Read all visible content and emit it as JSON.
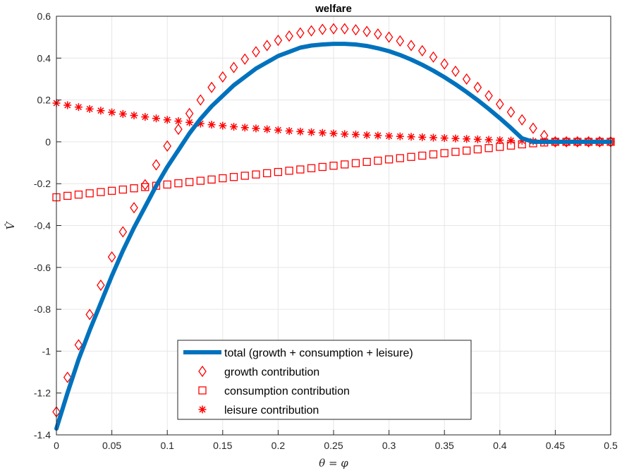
{
  "chart_data": {
    "type": "line",
    "title": "welfare",
    "xlabel": "θ = φ",
    "ylabel": "V̂",
    "xlim": [
      0,
      0.5
    ],
    "ylim": [
      -1.4,
      0.6
    ],
    "grid": true,
    "legend_position": "bottom-center",
    "x_ticks": [
      0,
      0.05,
      0.1,
      0.15,
      0.2,
      0.25,
      0.3,
      0.35,
      0.4,
      0.45,
      0.5
    ],
    "x_tick_labels": [
      "0",
      "0.05",
      "0.1",
      "0.15",
      "0.2",
      "0.25",
      "0.3",
      "0.35",
      "0.4",
      "0.45",
      "0.5"
    ],
    "y_ticks": [
      -1.4,
      -1.2,
      -1,
      -0.8,
      -0.6,
      -0.4,
      -0.2,
      0,
      0.2,
      0.4,
      0.6
    ],
    "y_tick_labels": [
      "-1.4",
      "-1.2",
      "-1",
      "-0.8",
      "-0.6",
      "-0.4",
      "-0.2",
      "0",
      "0.2",
      "0.4",
      "0.6"
    ],
    "x": [
      0,
      0.01,
      0.02,
      0.03,
      0.04,
      0.05,
      0.06,
      0.07,
      0.08,
      0.09,
      0.1,
      0.11,
      0.12,
      0.13,
      0.14,
      0.15,
      0.16,
      0.17,
      0.18,
      0.19,
      0.2,
      0.21,
      0.22,
      0.23,
      0.24,
      0.25,
      0.26,
      0.27,
      0.28,
      0.29,
      0.3,
      0.31,
      0.32,
      0.33,
      0.34,
      0.35,
      0.36,
      0.37,
      0.38,
      0.39,
      0.4,
      0.41,
      0.42,
      0.43,
      0.44,
      0.45,
      0.46,
      0.47,
      0.48,
      0.49,
      0.5
    ],
    "series": [
      {
        "name": "total (growth + consumption + leisure)",
        "style": "line",
        "color": "#0072BD",
        "x": [
          0,
          0.01,
          0.02,
          0.03,
          0.04,
          0.05,
          0.06,
          0.07,
          0.08,
          0.09,
          0.1,
          0.11,
          0.12,
          0.13,
          0.14,
          0.15,
          0.16,
          0.17,
          0.18,
          0.19,
          0.2,
          0.21,
          0.22,
          0.23,
          0.24,
          0.25,
          0.26,
          0.27,
          0.28,
          0.29,
          0.3,
          0.31,
          0.32,
          0.33,
          0.34,
          0.35,
          0.36,
          0.37,
          0.38,
          0.39,
          0.4,
          0.41,
          0.42,
          0.43,
          0.44,
          0.45,
          0.46,
          0.47,
          0.48,
          0.49,
          0.5
        ],
        "values": [
          -1.37,
          -1.2,
          -1.04,
          -0.9,
          -0.77,
          -0.64,
          -0.52,
          -0.41,
          -0.31,
          -0.21,
          -0.12,
          -0.04,
          0.04,
          0.11,
          0.17,
          0.22,
          0.27,
          0.31,
          0.35,
          0.38,
          0.41,
          0.43,
          0.45,
          0.46,
          0.465,
          0.468,
          0.468,
          0.465,
          0.458,
          0.447,
          0.433,
          0.415,
          0.393,
          0.368,
          0.34,
          0.309,
          0.275,
          0.238,
          0.199,
          0.157,
          0.113,
          0.066,
          0.017,
          0.0,
          0.0,
          0.0,
          0.0,
          0.0,
          0.0,
          0.0,
          0.0
        ]
      },
      {
        "name": "growth contribution",
        "style": "marker",
        "marker": "diamond",
        "color": "#FF0000",
        "values": [
          -1.29,
          -1.125,
          -0.97,
          -0.825,
          -0.685,
          -0.55,
          -0.43,
          -0.315,
          -0.205,
          -0.11,
          -0.02,
          0.06,
          0.135,
          0.2,
          0.26,
          0.31,
          0.355,
          0.395,
          0.43,
          0.46,
          0.485,
          0.505,
          0.52,
          0.53,
          0.537,
          0.54,
          0.54,
          0.535,
          0.527,
          0.515,
          0.5,
          0.482,
          0.46,
          0.435,
          0.405,
          0.372,
          0.337,
          0.3,
          0.26,
          0.22,
          0.18,
          0.142,
          0.105,
          0.065,
          0.03,
          0.0,
          0.0,
          0.0,
          0.0,
          0.0,
          0.0
        ]
      },
      {
        "name": "consumption contribution",
        "style": "marker",
        "marker": "square",
        "color": "#FF0000",
        "values": [
          -0.265,
          -0.258,
          -0.252,
          -0.246,
          -0.24,
          -0.234,
          -0.228,
          -0.222,
          -0.216,
          -0.21,
          -0.204,
          -0.198,
          -0.192,
          -0.186,
          -0.18,
          -0.174,
          -0.168,
          -0.162,
          -0.156,
          -0.15,
          -0.144,
          -0.138,
          -0.132,
          -0.126,
          -0.12,
          -0.114,
          -0.108,
          -0.102,
          -0.096,
          -0.09,
          -0.084,
          -0.078,
          -0.072,
          -0.066,
          -0.06,
          -0.054,
          -0.048,
          -0.042,
          -0.036,
          -0.03,
          -0.024,
          -0.018,
          -0.012,
          -0.007,
          -0.003,
          0.0,
          0.0,
          0.0,
          0.0,
          0.0,
          0.0
        ]
      },
      {
        "name": "leisure contribution",
        "style": "marker",
        "marker": "asterisk",
        "color": "#FF0000",
        "values": [
          0.185,
          0.175,
          0.166,
          0.157,
          0.149,
          0.141,
          0.133,
          0.126,
          0.119,
          0.112,
          0.105,
          0.099,
          0.093,
          0.087,
          0.082,
          0.077,
          0.072,
          0.068,
          0.064,
          0.06,
          0.056,
          0.052,
          0.049,
          0.046,
          0.043,
          0.04,
          0.037,
          0.035,
          0.032,
          0.03,
          0.028,
          0.026,
          0.024,
          0.022,
          0.02,
          0.018,
          0.016,
          0.014,
          0.012,
          0.01,
          0.008,
          0.006,
          0.005,
          0.003,
          0.002,
          0.001,
          0.0,
          0.0,
          0.0,
          0.0,
          0.0
        ]
      }
    ]
  }
}
